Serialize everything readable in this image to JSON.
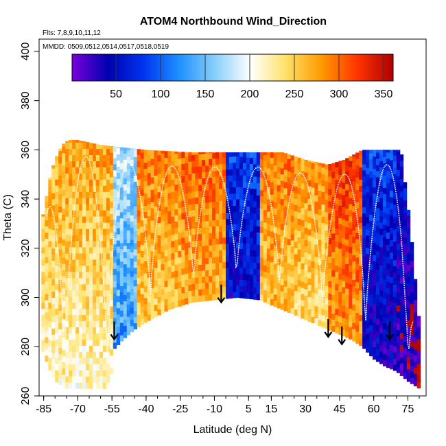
{
  "chart_data": {
    "type": "heatmap",
    "title": "ATOM4 Northbound Wind_Direction",
    "subtitle_flights": "Flts: 7,8,9,10,11,12",
    "subtitle_dates": "MMDD: 0509,0512,0514,0517,0518,0519",
    "xlabel": "Latitude (deg N)",
    "ylabel": "Theta (C)",
    "xlim": [
      -87,
      83
    ],
    "ylim": [
      260,
      405
    ],
    "x_ticks": [
      -85,
      -70,
      -55,
      -40,
      -25,
      -10,
      5,
      15,
      30,
      45,
      60,
      75
    ],
    "y_ticks": [
      260,
      280,
      300,
      320,
      340,
      360,
      380,
      400
    ],
    "colorbar": {
      "range": [
        0,
        360
      ],
      "ticks": [
        50,
        100,
        150,
        200,
        250,
        300,
        350
      ],
      "colors": [
        "#7a00d8",
        "#0000b0",
        "#0033ee",
        "#1e90ff",
        "#87cefa",
        "#ffffff",
        "#ffe066",
        "#ff9900",
        "#ff3300",
        "#b00000"
      ]
    },
    "data_top_theta": [
      [
        -86,
        330
      ],
      [
        -84,
        340
      ],
      [
        -82,
        350
      ],
      [
        -80,
        356
      ],
      [
        -77,
        362
      ],
      [
        -74,
        364
      ],
      [
        -70,
        364
      ],
      [
        -60,
        362
      ],
      [
        -40,
        360
      ],
      [
        -20,
        359
      ],
      [
        0,
        359
      ],
      [
        10,
        359
      ],
      [
        20,
        359
      ],
      [
        30,
        356
      ],
      [
        40,
        354
      ],
      [
        47,
        356
      ],
      [
        55,
        360
      ],
      [
        65,
        360
      ],
      [
        72,
        360
      ],
      [
        76,
        330
      ],
      [
        78,
        310
      ],
      [
        80,
        290
      ]
    ],
    "data_bottom_theta": [
      [
        -86,
        280
      ],
      [
        -83,
        272
      ],
      [
        -80,
        266
      ],
      [
        -75,
        263
      ],
      [
        -65,
        263
      ],
      [
        -56,
        263
      ],
      [
        -54,
        279
      ],
      [
        -50,
        283
      ],
      [
        -45,
        287
      ],
      [
        -40,
        290
      ],
      [
        -30,
        295
      ],
      [
        -20,
        298
      ],
      [
        -10,
        299
      ],
      [
        0,
        300
      ],
      [
        10,
        299
      ],
      [
        15,
        297
      ],
      [
        20,
        295
      ],
      [
        25,
        293
      ],
      [
        30,
        291
      ],
      [
        35,
        289
      ],
      [
        40,
        287
      ],
      [
        45,
        285
      ],
      [
        50,
        283
      ],
      [
        55,
        280
      ],
      [
        60,
        275
      ],
      [
        65,
        272
      ],
      [
        70,
        270
      ],
      [
        75,
        266
      ],
      [
        80,
        263
      ]
    ],
    "region_colors": [
      {
        "x": [
          -86,
          -55
        ],
        "theta": [
          260,
          330
        ],
        "direction": 250
      },
      {
        "x": [
          -55,
          -45
        ],
        "theta": [
          280,
          330
        ],
        "direction": 150
      },
      {
        "x": [
          -45,
          -25
        ],
        "theta": [
          295,
          360
        ],
        "direction": 270
      },
      {
        "x": [
          -25,
          -5
        ],
        "theta": [
          300,
          355
        ],
        "direction": 280
      },
      {
        "x": [
          -5,
          10
        ],
        "theta": [
          298,
          340
        ],
        "direction": 60
      },
      {
        "x": [
          10,
          25
        ],
        "theta": [
          295,
          345
        ],
        "direction": 270
      },
      {
        "x": [
          25,
          40
        ],
        "theta": [
          290,
          350
        ],
        "direction": 260
      },
      {
        "x": [
          40,
          55
        ],
        "theta": [
          283,
          360
        ],
        "direction": 300
      },
      {
        "x": [
          55,
          70
        ],
        "theta": [
          272,
          360
        ],
        "direction": 60
      },
      {
        "x": [
          70,
          82
        ],
        "theta": [
          263,
          330
        ],
        "direction": 40
      }
    ],
    "arrows": [
      {
        "x": -54,
        "theta": 283
      },
      {
        "x": -7,
        "theta": 298
      },
      {
        "x": 40,
        "theta": 284
      },
      {
        "x": 46,
        "theta": 281
      },
      {
        "x": 67,
        "theta": 283
      }
    ]
  }
}
